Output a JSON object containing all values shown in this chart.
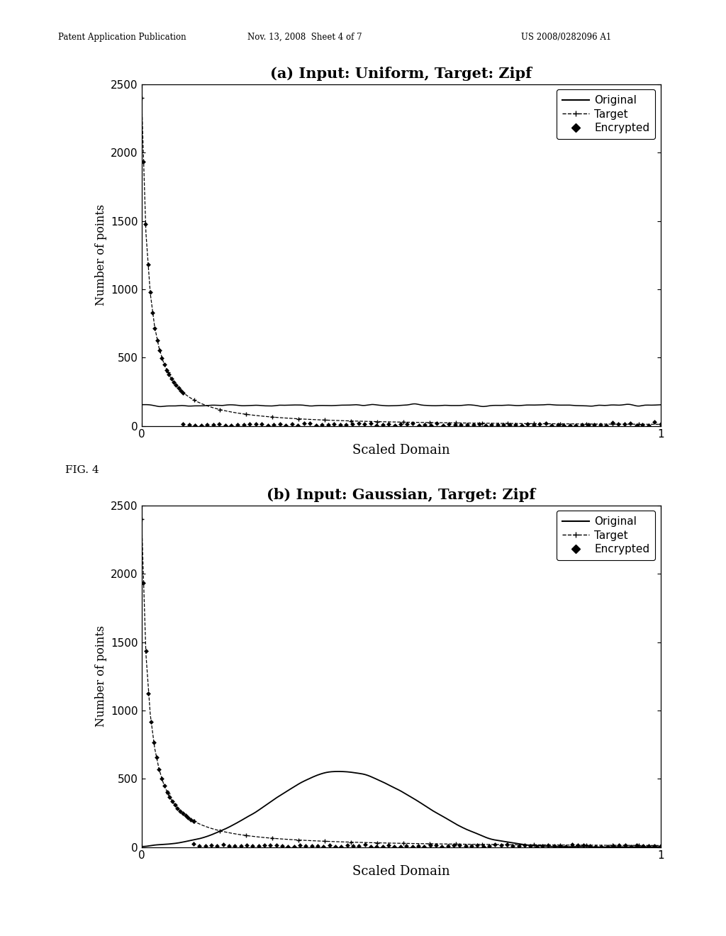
{
  "fig_width": 10.24,
  "fig_height": 13.2,
  "background_color": "#ffffff",
  "header_left": "Patent Application Publication",
  "header_mid": "Nov. 13, 2008  Sheet 4 of 7",
  "header_right": "US 2008/0282096 A1",
  "fig_label": "FIG. 4",
  "plot_a": {
    "title": "(a) Input: Uniform, Target: Zipf",
    "xlabel": "Scaled Domain",
    "ylabel": "Number of points",
    "xlim": [
      0,
      1
    ],
    "ylim": [
      0,
      2500
    ],
    "yticks": [
      0,
      500,
      1000,
      1500,
      2000,
      2500
    ],
    "xticks": [
      0,
      1
    ]
  },
  "plot_b": {
    "title": "(b) Input: Gaussian, Target: Zipf",
    "xlabel": "Scaled Domain",
    "ylabel": "Number of points",
    "xlim": [
      0,
      1
    ],
    "ylim": [
      0,
      2500
    ],
    "yticks": [
      0,
      500,
      1000,
      1500,
      2000,
      2500
    ],
    "xticks": [
      0,
      1
    ]
  }
}
